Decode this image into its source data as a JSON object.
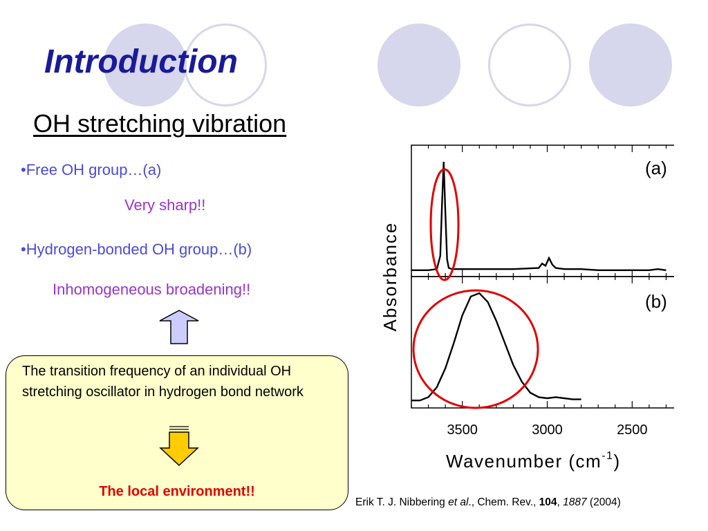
{
  "slide": {
    "title": "Introduction",
    "subtitle": "OH stretching vibration",
    "bullets": [
      {
        "text": "•Free OH group…(a)",
        "note": "Very sharp!!"
      },
      {
        "text": "•Hydrogen-bonded OH group…(b)",
        "note": "Inhomogeneous broadening!!"
      }
    ],
    "callout": {
      "text": "The transition frequency of an individual OH stretching oscillator in hydrogen bond network",
      "conclusion": "The local environment!!"
    },
    "citation": {
      "authors": "Erik T. J. Nibbering ",
      "etal": "et al",
      "after_etal": "., Chem. Rev., ",
      "volume": "104",
      "sep": ", ",
      "pages": "1887",
      "year": " (2004)"
    },
    "colors": {
      "title": "#1a1a9a",
      "bullet": "#4a4adb",
      "note": "#9a33cc",
      "callout_bg": "#ffffcc",
      "conclusion": "#e00000",
      "decor_circle": "#d6d6ec",
      "up_arrow_fill": "#ccccff",
      "down_arrow_fill": "#ffcc00",
      "highlight_ellipse": "#e00000"
    },
    "icons": [
      "up-arrow-icon",
      "down-arrow-icon"
    ]
  },
  "chart_data": {
    "type": "line",
    "xlabel": "Wavenumber (cm",
    "xlabel_sup": "-1",
    "xlabel_close": ")",
    "ylabel": "Absorbance",
    "x_ticks": [
      3500,
      3000,
      2500
    ],
    "xlim": [
      3800,
      2200
    ],
    "panels": [
      {
        "label": "(a)",
        "x": [
          3800,
          3700,
          3650,
          3630,
          3620,
          3610,
          3600,
          3590,
          3580,
          3560,
          3500,
          3400,
          3200,
          3050,
          3030,
          3010,
          2990,
          2970,
          2950,
          2900,
          2800,
          2700,
          2600,
          2500,
          2400,
          2350,
          2300
        ],
        "y": [
          0.02,
          0.02,
          0.03,
          0.15,
          0.6,
          1.0,
          0.55,
          0.12,
          0.04,
          0.03,
          0.03,
          0.03,
          0.03,
          0.04,
          0.08,
          0.06,
          0.13,
          0.07,
          0.04,
          0.03,
          0.03,
          0.02,
          0.02,
          0.02,
          0.02,
          0.03,
          0.02
        ]
      },
      {
        "label": "(b)",
        "x": [
          3800,
          3750,
          3700,
          3650,
          3600,
          3550,
          3500,
          3450,
          3400,
          3350,
          3300,
          3250,
          3200,
          3150,
          3100,
          3050,
          3000,
          2950,
          2900,
          2850,
          2800
        ],
        "y": [
          0.03,
          0.03,
          0.06,
          0.15,
          0.32,
          0.55,
          0.8,
          0.97,
          1.0,
          0.92,
          0.75,
          0.55,
          0.35,
          0.2,
          0.1,
          0.06,
          0.05,
          0.06,
          0.05,
          0.04,
          0.04
        ]
      }
    ],
    "annotations": [
      "red ellipse around peak (a)",
      "red ellipse around peak (b)"
    ]
  }
}
